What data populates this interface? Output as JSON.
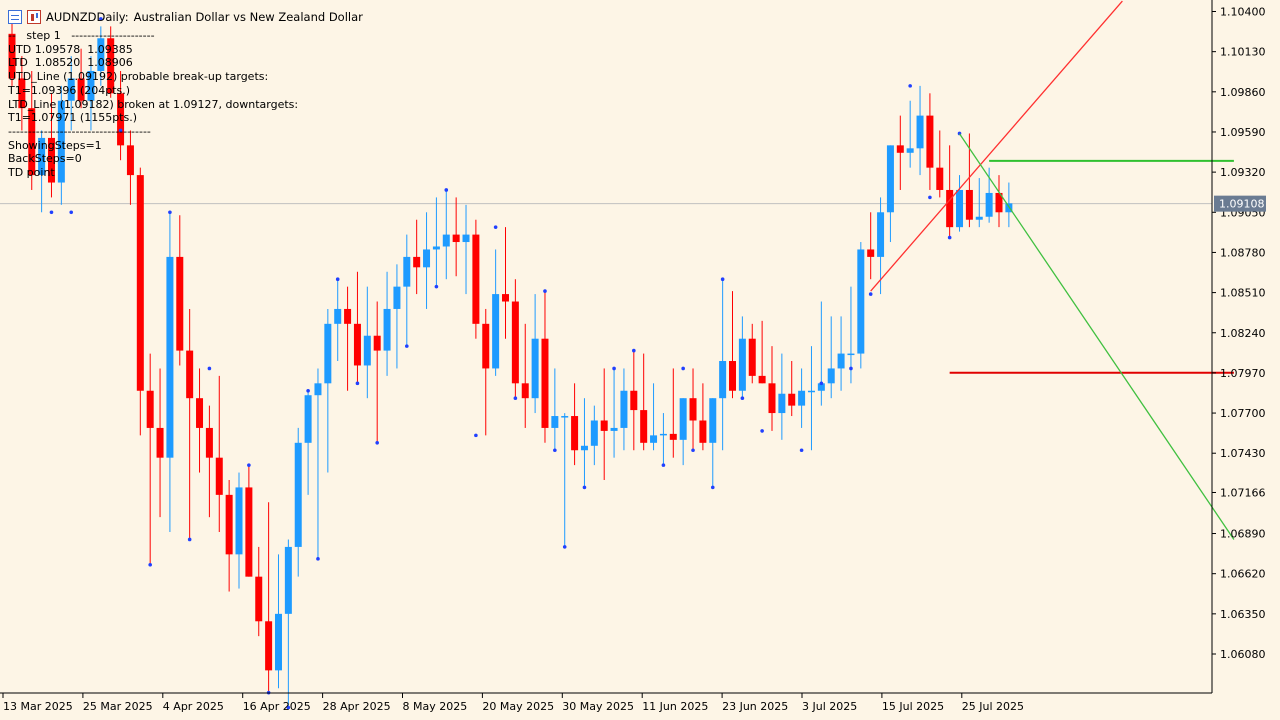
{
  "window": {
    "symbol": "AUDNZD",
    "timeframe": "Daily:",
    "description": "Australian Dollar vs New Zealand Dollar"
  },
  "indicator_text": [
    "--   step 1   ---------------------",
    "UTD 1.09578  1.09385",
    "LTD  1.08520  1.08906",
    "UTD_Line (1.09192) probable break-up targets:",
    "T1=1.09396 (204pts.)",
    "LTD_Line (1.09182) broken at 1.09127, downtargets:",
    "T1=1.07971 (1155pts.)",
    "------------------------------------",
    "ShowingSteps=1",
    "BackSteps=0",
    "TD point"
  ],
  "chart_data": {
    "type": "candlestick",
    "title": "AUDNZD, Daily:  Australian Dollar vs New Zealand Dollar",
    "ylim": [
      1.058,
      1.105
    ],
    "y_ticks": [
      "1.10400",
      "1.10130",
      "1.09860",
      "1.09590",
      "1.09320",
      "1.09050",
      "1.08780",
      "1.08510",
      "1.08240",
      "1.07970",
      "1.07700",
      "1.07430",
      "1.07166",
      "1.06890",
      "1.06620",
      "1.06350",
      "1.06080"
    ],
    "x_ticks": [
      "13 Mar 2025",
      "25 Mar 2025",
      "4 Apr 2025",
      "16 Apr 2025",
      "28 Apr 2025",
      "8 May 2025",
      "20 May 2025",
      "30 May 2025",
      "11 Jun 2025",
      "23 Jun 2025",
      "3 Jul 2025",
      "15 Jul 2025",
      "25 Jul 2025"
    ],
    "current_price": "1.09108",
    "colors": {
      "bull": "#1e9bff",
      "bear": "#ff0000",
      "grid_line": "#c0c0c0",
      "price_tag": "#6a7b92",
      "utd_line": "#ff3030",
      "ltd_line": "#40c040",
      "target_up": "#30c030",
      "target_down": "#e00000",
      "td_point": "#2040ff"
    },
    "candles": [
      {
        "o": 1.1025,
        "h": 1.1035,
        "l": 1.099,
        "c": 1.0995
      },
      {
        "o": 1.0995,
        "h": 1.101,
        "l": 1.096,
        "c": 1.0975
      },
      {
        "o": 1.0975,
        "h": 1.1,
        "l": 1.092,
        "c": 1.093
      },
      {
        "o": 1.093,
        "h": 1.096,
        "l": 1.0905,
        "c": 1.0955
      },
      {
        "o": 1.0955,
        "h": 1.0985,
        "l": 1.0915,
        "c": 1.0925
      },
      {
        "o": 1.0925,
        "h": 1.099,
        "l": 1.091,
        "c": 1.098
      },
      {
        "o": 1.098,
        "h": 1.101,
        "l": 1.096,
        "c": 1.0995
      },
      {
        "o": 1.0995,
        "h": 1.1015,
        "l": 1.0975,
        "c": 1.098
      },
      {
        "o": 1.098,
        "h": 1.101,
        "l": 1.096,
        "c": 1.1
      },
      {
        "o": 1.1,
        "h": 1.103,
        "l": 1.099,
        "c": 1.1022
      },
      {
        "o": 1.1022,
        "h": 1.103,
        "l": 1.0982,
        "c": 1.0985
      },
      {
        "o": 1.0985,
        "h": 1.1,
        "l": 1.094,
        "c": 1.095
      },
      {
        "o": 1.095,
        "h": 1.096,
        "l": 1.091,
        "c": 1.093
      },
      {
        "o": 1.093,
        "h": 1.0935,
        "l": 1.0755,
        "c": 1.0785
      },
      {
        "o": 1.0785,
        "h": 1.081,
        "l": 1.0668,
        "c": 1.076
      },
      {
        "o": 1.076,
        "h": 1.08,
        "l": 1.07,
        "c": 1.074
      },
      {
        "o": 1.074,
        "h": 1.0905,
        "l": 1.069,
        "c": 1.0875
      },
      {
        "o": 1.0875,
        "h": 1.0903,
        "l": 1.0802,
        "c": 1.0812
      },
      {
        "o": 1.0812,
        "h": 1.084,
        "l": 1.0685,
        "c": 1.078
      },
      {
        "o": 1.078,
        "h": 1.08,
        "l": 1.073,
        "c": 1.076
      },
      {
        "o": 1.076,
        "h": 1.0775,
        "l": 1.07,
        "c": 1.074
      },
      {
        "o": 1.074,
        "h": 1.0795,
        "l": 1.069,
        "c": 1.0715
      },
      {
        "o": 1.0715,
        "h": 1.0725,
        "l": 1.065,
        "c": 1.0675
      },
      {
        "o": 1.0675,
        "h": 1.073,
        "l": 1.0652,
        "c": 1.072
      },
      {
        "o": 1.072,
        "h": 1.0735,
        "l": 1.066,
        "c": 1.066
      },
      {
        "o": 1.066,
        "h": 1.068,
        "l": 1.062,
        "c": 1.063
      },
      {
        "o": 1.063,
        "h": 1.071,
        "l": 1.0582,
        "c": 1.0597
      },
      {
        "o": 1.0597,
        "h": 1.0675,
        "l": 1.0585,
        "c": 1.0635
      },
      {
        "o": 1.0635,
        "h": 1.0685,
        "l": 1.0572,
        "c": 1.068
      },
      {
        "o": 1.068,
        "h": 1.076,
        "l": 1.066,
        "c": 1.075
      },
      {
        "o": 1.075,
        "h": 1.0785,
        "l": 1.0715,
        "c": 1.0782
      },
      {
        "o": 1.0782,
        "h": 1.08,
        "l": 1.0672,
        "c": 1.079
      },
      {
        "o": 1.079,
        "h": 1.084,
        "l": 1.073,
        "c": 1.083
      },
      {
        "o": 1.083,
        "h": 1.086,
        "l": 1.0805,
        "c": 1.084
      },
      {
        "o": 1.084,
        "h": 1.0855,
        "l": 1.0785,
        "c": 1.083
      },
      {
        "o": 1.083,
        "h": 1.0865,
        "l": 1.079,
        "c": 1.0802
      },
      {
        "o": 1.0802,
        "h": 1.0855,
        "l": 1.078,
        "c": 1.0822
      },
      {
        "o": 1.0822,
        "h": 1.0845,
        "l": 1.075,
        "c": 1.0812
      },
      {
        "o": 1.0812,
        "h": 1.0865,
        "l": 1.0795,
        "c": 1.084
      },
      {
        "o": 1.084,
        "h": 1.087,
        "l": 1.08,
        "c": 1.0855
      },
      {
        "o": 1.0855,
        "h": 1.089,
        "l": 1.0815,
        "c": 1.0875
      },
      {
        "o": 1.0875,
        "h": 1.09,
        "l": 1.085,
        "c": 1.0868
      },
      {
        "o": 1.0868,
        "h": 1.0905,
        "l": 1.084,
        "c": 1.088
      },
      {
        "o": 1.088,
        "h": 1.0915,
        "l": 1.0855,
        "c": 1.0882
      },
      {
        "o": 1.0882,
        "h": 1.092,
        "l": 1.086,
        "c": 1.089
      },
      {
        "o": 1.089,
        "h": 1.0915,
        "l": 1.0862,
        "c": 1.0885
      },
      {
        "o": 1.0885,
        "h": 1.091,
        "l": 1.085,
        "c": 1.089
      },
      {
        "o": 1.089,
        "h": 1.09,
        "l": 1.082,
        "c": 1.083
      },
      {
        "o": 1.083,
        "h": 1.084,
        "l": 1.0755,
        "c": 1.08
      },
      {
        "o": 1.08,
        "h": 1.088,
        "l": 1.0795,
        "c": 1.085
      },
      {
        "o": 1.085,
        "h": 1.0895,
        "l": 1.082,
        "c": 1.0845
      },
      {
        "o": 1.0845,
        "h": 1.086,
        "l": 1.078,
        "c": 1.079
      },
      {
        "o": 1.079,
        "h": 1.083,
        "l": 1.076,
        "c": 1.078
      },
      {
        "o": 1.078,
        "h": 1.085,
        "l": 1.077,
        "c": 1.082
      },
      {
        "o": 1.082,
        "h": 1.0852,
        "l": 1.075,
        "c": 1.076
      },
      {
        "o": 1.076,
        "h": 1.08,
        "l": 1.0745,
        "c": 1.0768
      },
      {
        "o": 1.0768,
        "h": 1.077,
        "l": 1.068,
        "c": 1.0768
      },
      {
        "o": 1.0768,
        "h": 1.079,
        "l": 1.0735,
        "c": 1.0745
      },
      {
        "o": 1.0745,
        "h": 1.078,
        "l": 1.072,
        "c": 1.0748
      },
      {
        "o": 1.0748,
        "h": 1.0775,
        "l": 1.0735,
        "c": 1.0765
      },
      {
        "o": 1.0765,
        "h": 1.08,
        "l": 1.0725,
        "c": 1.0758
      },
      {
        "o": 1.0758,
        "h": 1.08,
        "l": 1.074,
        "c": 1.076
      },
      {
        "o": 1.076,
        "h": 1.08,
        "l": 1.0745,
        "c": 1.0785
      },
      {
        "o": 1.0785,
        "h": 1.0812,
        "l": 1.0745,
        "c": 1.0772
      },
      {
        "o": 1.0772,
        "h": 1.081,
        "l": 1.0745,
        "c": 1.075
      },
      {
        "o": 1.075,
        "h": 1.079,
        "l": 1.0745,
        "c": 1.0755
      },
      {
        "o": 1.0755,
        "h": 1.077,
        "l": 1.0735,
        "c": 1.0756
      },
      {
        "o": 1.0756,
        "h": 1.08,
        "l": 1.074,
        "c": 1.0752
      },
      {
        "o": 1.0752,
        "h": 1.078,
        "l": 1.0735,
        "c": 1.078
      },
      {
        "o": 1.078,
        "h": 1.08,
        "l": 1.0745,
        "c": 1.0765
      },
      {
        "o": 1.0765,
        "h": 1.079,
        "l": 1.0745,
        "c": 1.075
      },
      {
        "o": 1.075,
        "h": 1.078,
        "l": 1.072,
        "c": 1.078
      },
      {
        "o": 1.078,
        "h": 1.086,
        "l": 1.0745,
        "c": 1.0805
      },
      {
        "o": 1.0805,
        "h": 1.0852,
        "l": 1.078,
        "c": 1.0785
      },
      {
        "o": 1.0785,
        "h": 1.0835,
        "l": 1.078,
        "c": 1.082
      },
      {
        "o": 1.082,
        "h": 1.083,
        "l": 1.079,
        "c": 1.0795
      },
      {
        "o": 1.0795,
        "h": 1.0832,
        "l": 1.079,
        "c": 1.079
      },
      {
        "o": 1.079,
        "h": 1.0815,
        "l": 1.0758,
        "c": 1.077
      },
      {
        "o": 1.077,
        "h": 1.081,
        "l": 1.0752,
        "c": 1.0783
      },
      {
        "o": 1.0783,
        "h": 1.0805,
        "l": 1.0768,
        "c": 1.0775
      },
      {
        "o": 1.0775,
        "h": 1.08,
        "l": 1.076,
        "c": 1.0785
      },
      {
        "o": 1.0785,
        "h": 1.0815,
        "l": 1.0745,
        "c": 1.0785
      },
      {
        "o": 1.0785,
        "h": 1.0845,
        "l": 1.0775,
        "c": 1.079
      },
      {
        "o": 1.079,
        "h": 1.0835,
        "l": 1.078,
        "c": 1.08
      },
      {
        "o": 1.08,
        "h": 1.0835,
        "l": 1.0785,
        "c": 1.081
      },
      {
        "o": 1.081,
        "h": 1.0855,
        "l": 1.079,
        "c": 1.081
      },
      {
        "o": 1.081,
        "h": 1.0885,
        "l": 1.08,
        "c": 1.088
      },
      {
        "o": 1.088,
        "h": 1.0905,
        "l": 1.086,
        "c": 1.0875
      },
      {
        "o": 1.0875,
        "h": 1.0915,
        "l": 1.085,
        "c": 1.0905
      },
      {
        "o": 1.0905,
        "h": 1.095,
        "l": 1.0885,
        "c": 1.095
      },
      {
        "o": 1.095,
        "h": 1.097,
        "l": 1.092,
        "c": 1.0945
      },
      {
        "o": 1.0945,
        "h": 1.098,
        "l": 1.0935,
        "c": 1.0948
      },
      {
        "o": 1.0948,
        "h": 1.099,
        "l": 1.093,
        "c": 1.097
      },
      {
        "o": 1.097,
        "h": 1.0985,
        "l": 1.092,
        "c": 1.0935
      },
      {
        "o": 1.0935,
        "h": 1.096,
        "l": 1.0915,
        "c": 1.092
      },
      {
        "o": 1.092,
        "h": 1.095,
        "l": 1.0888,
        "c": 1.0895
      },
      {
        "o": 1.0895,
        "h": 1.093,
        "l": 1.0892,
        "c": 1.092
      },
      {
        "o": 1.092,
        "h": 1.0958,
        "l": 1.0895,
        "c": 1.09
      },
      {
        "o": 1.09,
        "h": 1.0928,
        "l": 1.0895,
        "c": 1.0902
      },
      {
        "o": 1.0902,
        "h": 1.0935,
        "l": 1.0898,
        "c": 1.0918
      },
      {
        "o": 1.0918,
        "h": 1.093,
        "l": 1.0895,
        "c": 1.0905
      },
      {
        "o": 1.0905,
        "h": 1.0925,
        "l": 1.0895,
        "c": 1.0911
      }
    ],
    "td_points": [
      {
        "index": 4,
        "price": 1.0905
      },
      {
        "index": 6,
        "price": 1.0905
      },
      {
        "index": 9,
        "price": 1.1035
      },
      {
        "index": 11,
        "price": 1.096
      },
      {
        "index": 14,
        "price": 1.0668
      },
      {
        "index": 16,
        "price": 1.0905
      },
      {
        "index": 18,
        "price": 1.0685
      },
      {
        "index": 20,
        "price": 1.08
      },
      {
        "index": 24,
        "price": 1.0735
      },
      {
        "index": 26,
        "price": 1.0582
      },
      {
        "index": 28,
        "price": 1.0572
      },
      {
        "index": 30,
        "price": 1.0785
      },
      {
        "index": 31,
        "price": 1.0672
      },
      {
        "index": 33,
        "price": 1.086
      },
      {
        "index": 35,
        "price": 1.079
      },
      {
        "index": 37,
        "price": 1.075
      },
      {
        "index": 40,
        "price": 1.0815
      },
      {
        "index": 43,
        "price": 1.0855
      },
      {
        "index": 44,
        "price": 1.092
      },
      {
        "index": 47,
        "price": 1.0755
      },
      {
        "index": 49,
        "price": 1.0895
      },
      {
        "index": 51,
        "price": 1.078
      },
      {
        "index": 54,
        "price": 1.0852
      },
      {
        "index": 55,
        "price": 1.0745
      },
      {
        "index": 56,
        "price": 1.068
      },
      {
        "index": 58,
        "price": 1.072
      },
      {
        "index": 61,
        "price": 1.08
      },
      {
        "index": 63,
        "price": 1.0812
      },
      {
        "index": 66,
        "price": 1.0735
      },
      {
        "index": 68,
        "price": 1.08
      },
      {
        "index": 69,
        "price": 1.0745
      },
      {
        "index": 71,
        "price": 1.072
      },
      {
        "index": 72,
        "price": 1.086
      },
      {
        "index": 74,
        "price": 1.078
      },
      {
        "index": 76,
        "price": 1.0758
      },
      {
        "index": 80,
        "price": 1.0745
      },
      {
        "index": 82,
        "price": 1.079
      },
      {
        "index": 85,
        "price": 1.08
      },
      {
        "index": 87,
        "price": 1.085
      },
      {
        "index": 91,
        "price": 1.099
      },
      {
        "index": 93,
        "price": 1.0915
      },
      {
        "index": 95,
        "price": 1.0888
      },
      {
        "index": 96,
        "price": 1.0958
      }
    ],
    "trend_lines": {
      "utd_line": {
        "from": {
          "index": 87,
          "price": 1.0852
        },
        "to": {
          "index": 112.5,
          "price": 1.1047
        }
      },
      "ltd_line": {
        "from": {
          "index": 96,
          "price": 1.09578
        },
        "to": {
          "index": 123.8,
          "price": 1.0685
        }
      },
      "target_up": {
        "from": {
          "index": 99,
          "price": 1.09396
        },
        "to": {
          "index": 123.8,
          "price": 1.09396
        }
      },
      "target_down": {
        "from": {
          "index": 95,
          "price": 1.07971
        },
        "to": {
          "index": 123.8,
          "price": 1.07971
        }
      }
    }
  }
}
